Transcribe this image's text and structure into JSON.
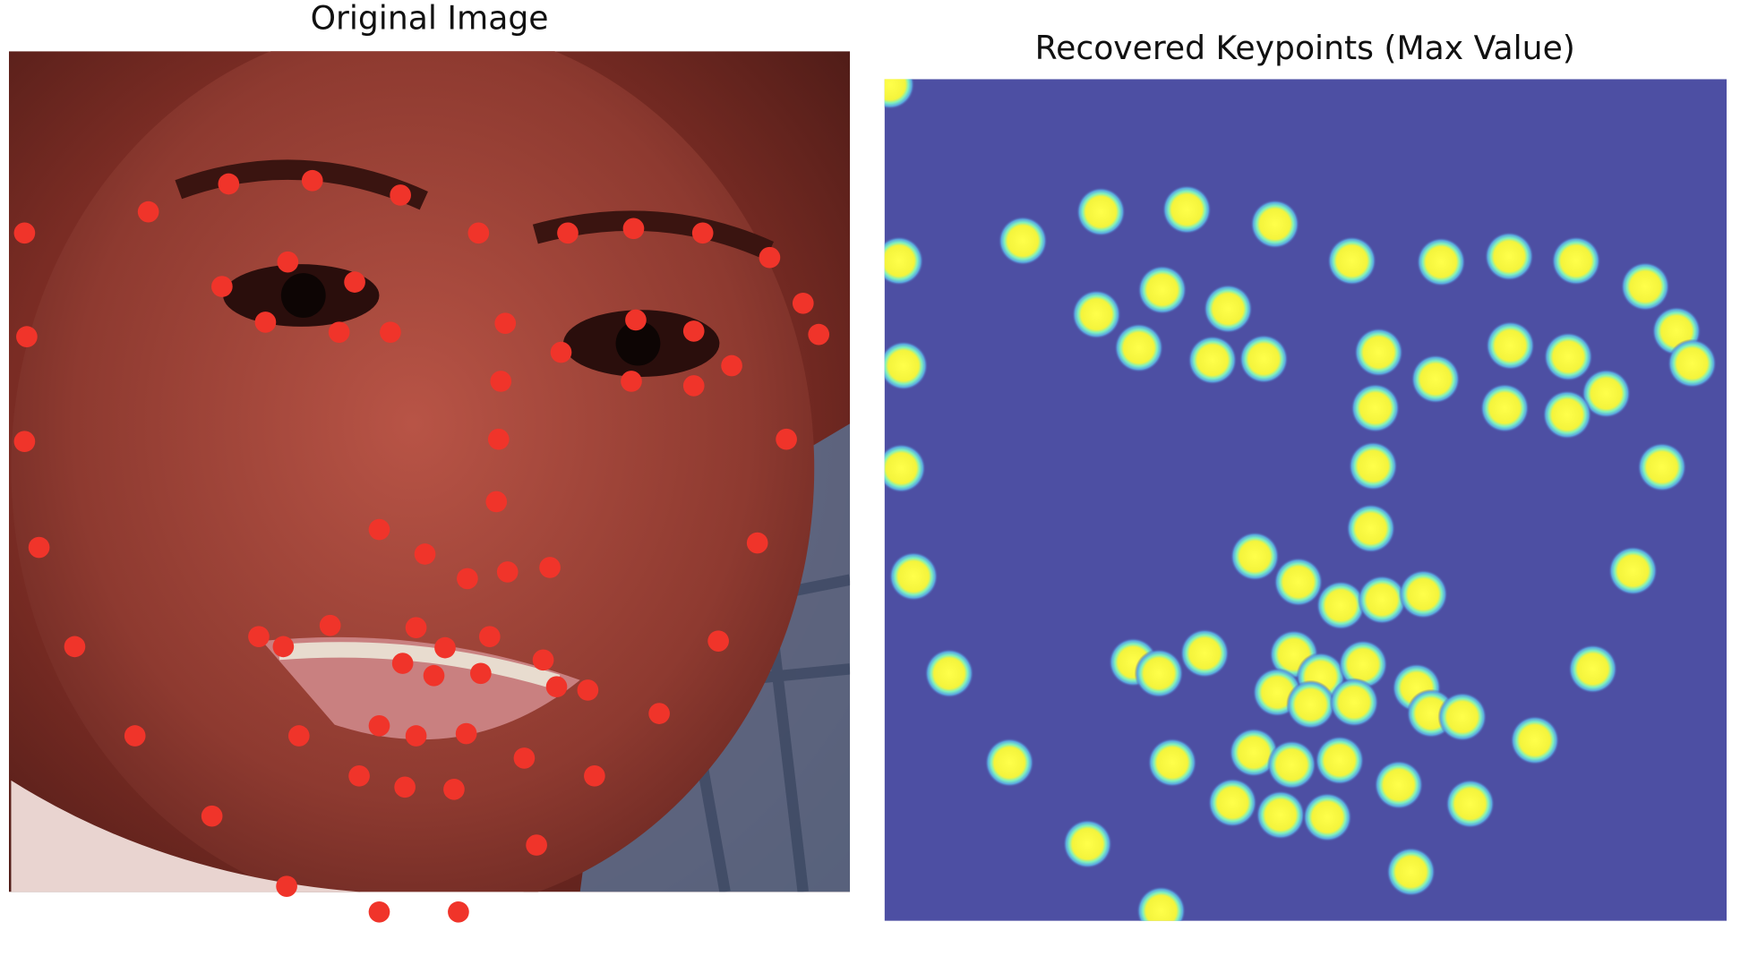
{
  "panels": [
    {
      "title": "Original Image"
    },
    {
      "title": "Recovered Keypoints (Max Value)"
    }
  ]
}
